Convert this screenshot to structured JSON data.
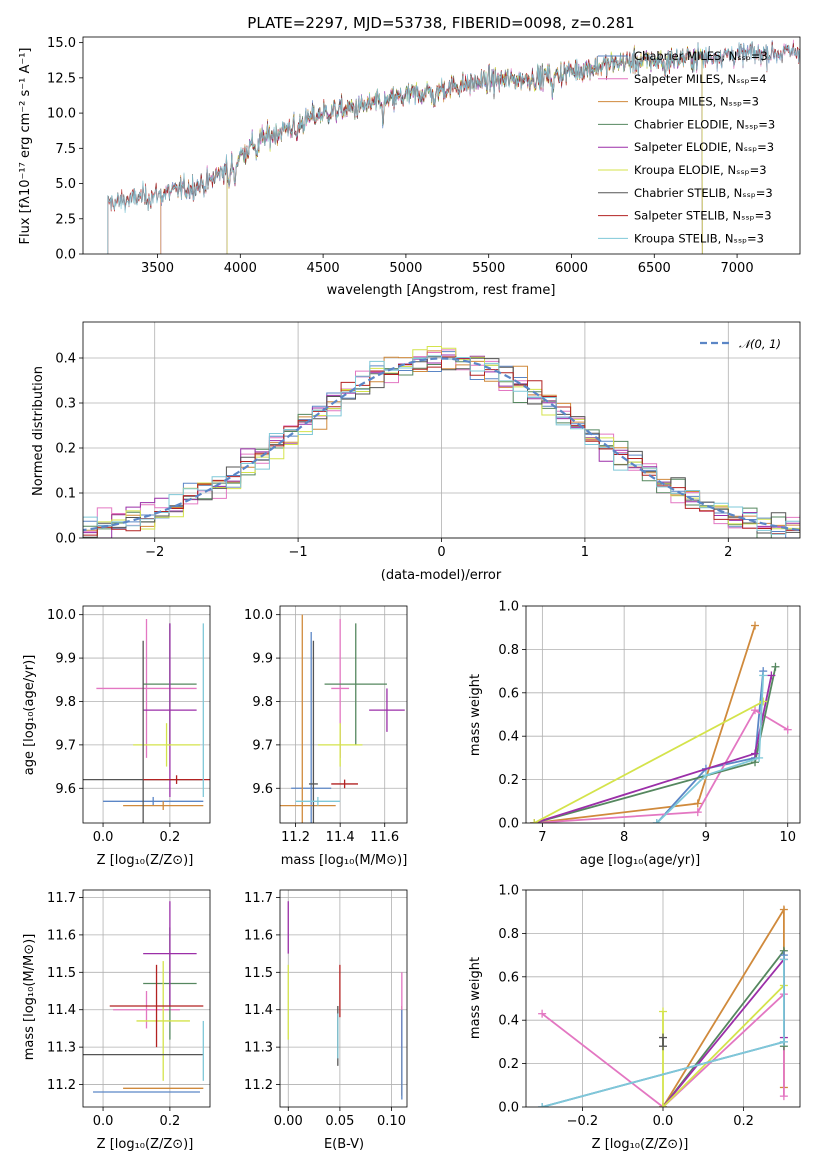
{
  "chart_data": [
    {
      "id": "spectrum",
      "type": "line",
      "title": "PLATE=2297, MJD=53738, FIBERID=0098, z=0.281",
      "xlabel": "wavelength [Angstrom, rest frame]",
      "ylabel": "Flux [fλ10⁻¹⁷ erg cm⁻² s⁻¹ A⁻¹]",
      "xlim": [
        3050,
        7380
      ],
      "ylim": [
        0,
        15.4
      ],
      "xticks": [
        "3500",
        "4000",
        "4500",
        "5000",
        "5500",
        "6000",
        "6500",
        "7000"
      ],
      "yticks": [
        "0.0",
        "2.5",
        "5.0",
        "7.5",
        "10.0",
        "12.5",
        "15.0"
      ],
      "legend_position": "right",
      "series": [
        {
          "name": "Chabrier MILES, Nₛₛₚ=3",
          "color": "#5b86c6",
          "start": 3520,
          "end": 7380
        },
        {
          "name": "Salpeter MILES, Nₛₛₚ=4",
          "color": "#e377c2",
          "start": 3520,
          "end": 7380
        },
        {
          "name": "Kroupa MILES, Nₛₛₚ=3",
          "color": "#d08a3c",
          "start": 3520,
          "end": 6790
        },
        {
          "name": "Chabrier ELODIE, Nₛₛₚ=3",
          "color": "#55875f",
          "start": 3920,
          "end": 6790
        },
        {
          "name": "Salpeter ELODIE, Nₛₛₚ=3",
          "color": "#9b2fa8",
          "start": 3920,
          "end": 6790
        },
        {
          "name": "Kroupa ELODIE, Nₛₛₚ=3",
          "color": "#d4e34b",
          "start": 3920,
          "end": 6790
        },
        {
          "name": "Chabrier STELIB, Nₛₛₚ=3",
          "color": "#555555",
          "start": 3200,
          "end": 7380
        },
        {
          "name": "Salpeter STELIB, Nₛₛₚ=3",
          "color": "#b22222",
          "start": 3200,
          "end": 7380
        },
        {
          "name": "Kroupa STELIB, Nₛₛₚ=3",
          "color": "#7fc8d8",
          "start": 3200,
          "end": 7380
        }
      ],
      "approx_continuum": [
        [
          3200,
          3.6
        ],
        [
          3500,
          4.2
        ],
        [
          3800,
          5.0
        ],
        [
          3950,
          6.5
        ],
        [
          4100,
          8.0
        ],
        [
          4300,
          9.0
        ],
        [
          4500,
          10.0
        ],
        [
          4800,
          10.6
        ],
        [
          5000,
          11.2
        ],
        [
          5200,
          11.7
        ],
        [
          5500,
          12.3
        ],
        [
          5800,
          12.5
        ],
        [
          6000,
          13.0
        ],
        [
          6300,
          13.6
        ],
        [
          6600,
          13.8
        ],
        [
          7000,
          14.2
        ],
        [
          7380,
          14.3
        ]
      ]
    },
    {
      "id": "residuals",
      "type": "line",
      "xlabel": "(data-model)/error",
      "ylabel": "Normed distribution",
      "xlim": [
        -2.5,
        2.5
      ],
      "ylim": [
        0,
        0.48
      ],
      "xticks": [
        "−2",
        "−1",
        "0",
        "1",
        "2"
      ],
      "yticks": [
        "0.0",
        "0.1",
        "0.2",
        "0.3",
        "0.4"
      ],
      "legend": "𝒩(0, 1)",
      "legend_position": "top-right",
      "bin_width": 0.1
    },
    {
      "id": "age_vs_Z",
      "type": "scatter",
      "xlabel": "Z [log₁₀(Z/Z⊙)]",
      "ylabel": "age  [log₁₀(age/yr)]",
      "xlim": [
        -0.06,
        0.32
      ],
      "ylim": [
        9.52,
        10.02
      ],
      "xticks": [
        "0.0",
        "0.2"
      ],
      "yticks": [
        "9.6",
        "9.7",
        "9.8",
        "9.9",
        "10.0"
      ],
      "points": [
        {
          "color": "#5b86c6",
          "x": 0.15,
          "xerr": 0.15,
          "y": 9.57,
          "yerr": 0.01
        },
        {
          "color": "#e377c2",
          "x": 0.13,
          "xerr": 0.15,
          "y": 9.83,
          "yerr": 0.16
        },
        {
          "color": "#d08a3c",
          "x": 0.18,
          "xerr": 0.12,
          "y": 9.56,
          "yerr": 0.01
        },
        {
          "color": "#55875f",
          "x": 0.2,
          "xerr": 0.08,
          "y": 9.84,
          "yerr": 0.14
        },
        {
          "color": "#9b2fa8",
          "x": 0.2,
          "xerr": 0.08,
          "y": 9.78,
          "yerr": 0.2
        },
        {
          "color": "#d4e34b",
          "x": 0.19,
          "xerr": 0.1,
          "y": 9.7,
          "yerr": 0.05
        },
        {
          "color": "#555555",
          "x": 0.12,
          "xerr": 0.18,
          "y": 9.62,
          "yerr": 0.32
        },
        {
          "color": "#b22222",
          "x": 0.22,
          "xerr": 0.1,
          "y": 9.62,
          "yerr": 0.01
        },
        {
          "color": "#7fc8d8",
          "x": 0.3,
          "xerr": 0.0,
          "y": 9.78,
          "yerr": 0.2
        }
      ]
    },
    {
      "id": "age_vs_mass",
      "type": "scatter",
      "xlabel": "mass [log₁₀(M/M⊙)]",
      "ylabel": "",
      "xlim": [
        11.13,
        11.7
      ],
      "ylim": [
        9.52,
        10.02
      ],
      "xticks": [
        "11.2",
        "11.4",
        "11.6"
      ],
      "yticks": [
        "9.6",
        "9.7",
        "9.8",
        "9.9",
        "10.0"
      ],
      "points": [
        {
          "color": "#5b86c6",
          "x": 11.27,
          "xerr": 0.09,
          "y": 9.6,
          "yerr": 0.36
        },
        {
          "color": "#e377c2",
          "x": 11.4,
          "xerr": 0.04,
          "y": 9.83,
          "yerr": 0.16
        },
        {
          "color": "#d08a3c",
          "x": 11.23,
          "xerr": 0.15,
          "y": 9.56,
          "yerr": 0.44
        },
        {
          "color": "#55875f",
          "x": 11.47,
          "xerr": 0.14,
          "y": 9.84,
          "yerr": 0.14
        },
        {
          "color": "#9b2fa8",
          "x": 11.61,
          "xerr": 0.08,
          "y": 9.78,
          "yerr": 0.05
        },
        {
          "color": "#d4e34b",
          "x": 11.4,
          "xerr": 0.1,
          "y": 9.7,
          "yerr": 0.05
        },
        {
          "color": "#555555",
          "x": 11.28,
          "xerr": 0.02,
          "y": 9.61,
          "yerr": 0.33
        },
        {
          "color": "#b22222",
          "x": 11.42,
          "xerr": 0.06,
          "y": 9.61,
          "yerr": 0.01
        },
        {
          "color": "#7fc8d8",
          "x": 11.3,
          "xerr": 0.1,
          "y": 9.57,
          "yerr": 0.01
        }
      ]
    },
    {
      "id": "massweight_vs_age",
      "type": "line",
      "xlabel": "age  [log₁₀(age/yr)]",
      "ylabel": "mass weight",
      "xlim": [
        6.8,
        10.15
      ],
      "ylim": [
        0,
        1
      ],
      "xticks": [
        "7",
        "8",
        "9",
        "10"
      ],
      "yticks": [
        "0.0",
        "0.2",
        "0.4",
        "0.6",
        "0.8",
        "1.0"
      ],
      "series": [
        {
          "color": "#d08a3c",
          "x": [
            6.9,
            8.9,
            9.6
          ],
          "y": [
            0.0,
            0.09,
            0.91
          ]
        },
        {
          "color": "#5b86c6",
          "x": [
            8.4,
            9.0,
            9.6,
            9.7
          ],
          "y": [
            0.0,
            0.25,
            0.3,
            0.7
          ]
        },
        {
          "color": "#e377c2",
          "x": [
            6.9,
            8.9,
            9.6,
            10.0
          ],
          "y": [
            0.0,
            0.05,
            0.52,
            0.43
          ]
        },
        {
          "color": "#55875f",
          "x": [
            6.9,
            9.6,
            9.85
          ],
          "y": [
            0.0,
            0.28,
            0.72
          ]
        },
        {
          "color": "#9b2fa8",
          "x": [
            6.9,
            9.6,
            9.8
          ],
          "y": [
            0.0,
            0.32,
            0.68
          ]
        },
        {
          "color": "#d4e34b",
          "x": [
            6.9,
            9.7
          ],
          "y": [
            0.0,
            0.56
          ]
        },
        {
          "color": "#7fc8d8",
          "x": [
            8.4,
            9.0,
            9.65,
            9.7
          ],
          "y": [
            0.0,
            0.22,
            0.3,
            0.68
          ]
        }
      ]
    },
    {
      "id": "mass_vs_Z",
      "type": "scatter",
      "xlabel": "Z [log₁₀(Z/Z⊙)]",
      "ylabel": "mass [log₁₀(M/M⊙)]",
      "xlim": [
        -0.06,
        0.32
      ],
      "ylim": [
        11.14,
        11.72
      ],
      "xticks": [
        "0.0",
        "0.2"
      ],
      "yticks": [
        "11.2",
        "11.3",
        "11.4",
        "11.5",
        "11.6",
        "11.7"
      ],
      "points": [
        {
          "color": "#5b86c6",
          "x": 0.13,
          "xerr": 0.16,
          "y": 11.18,
          "yerr": 0.0
        },
        {
          "color": "#e377c2",
          "x": 0.13,
          "xerr": 0.1,
          "y": 11.4,
          "yerr": 0.05
        },
        {
          "color": "#d08a3c",
          "x": 0.18,
          "xerr": 0.12,
          "y": 11.19,
          "yerr": 0.0
        },
        {
          "color": "#55875f",
          "x": 0.2,
          "xerr": 0.08,
          "y": 11.47,
          "yerr": 0.15
        },
        {
          "color": "#9b2fa8",
          "x": 0.2,
          "xerr": 0.08,
          "y": 11.55,
          "yerr": 0.14
        },
        {
          "color": "#d4e34b",
          "x": 0.18,
          "xerr": 0.08,
          "y": 11.37,
          "yerr": 0.16
        },
        {
          "color": "#555555",
          "x": 0.12,
          "xerr": 0.18,
          "y": 11.28,
          "yerr": 0.0
        },
        {
          "color": "#b22222",
          "x": 0.16,
          "xerr": 0.14,
          "y": 11.41,
          "yerr": 0.11
        },
        {
          "color": "#7fc8d8",
          "x": 0.3,
          "xerr": 0.0,
          "y": 11.29,
          "yerr": 0.08
        }
      ]
    },
    {
      "id": "mass_vs_EBV",
      "type": "scatter",
      "xlabel": "E(B-V)",
      "ylabel": "",
      "xlim": [
        -0.008,
        0.115
      ],
      "ylim": [
        11.14,
        11.72
      ],
      "xticks": [
        "0.00",
        "0.05",
        "0.10"
      ],
      "yticks": [
        "11.2",
        "11.3",
        "11.4",
        "11.5",
        "11.6",
        "11.7"
      ],
      "points": [
        {
          "color": "#9b2fa8",
          "x": 0.0,
          "xerr": 0,
          "y": 11.62,
          "yerr": 0.07
        },
        {
          "color": "#d4e34b",
          "x": 0.0,
          "xerr": 0,
          "y": 11.42,
          "yerr": 0.1
        },
        {
          "color": "#b22222",
          "x": 0.05,
          "xerr": 0,
          "y": 11.45,
          "yerr": 0.07
        },
        {
          "color": "#555555",
          "x": 0.048,
          "xerr": 0,
          "y": 11.33,
          "yerr": 0.08
        },
        {
          "color": "#7fc8d8",
          "x": 0.048,
          "xerr": 0,
          "y": 11.33,
          "yerr": 0.06
        },
        {
          "color": "#d08a3c",
          "x": 0.11,
          "xerr": 0,
          "y": 11.29,
          "yerr": 0.12
        },
        {
          "color": "#e377c2",
          "x": 0.11,
          "xerr": 0,
          "y": 11.4,
          "yerr": 0.1
        },
        {
          "color": "#5b86c6",
          "x": 0.11,
          "xerr": 0,
          "y": 11.28,
          "yerr": 0.12
        }
      ]
    },
    {
      "id": "massweight_vs_Z",
      "type": "line",
      "xlabel": "Z [log₁₀(Z/Z⊙)]",
      "ylabel": "mass weight",
      "xlim": [
        -0.34,
        0.34
      ],
      "ylim": [
        0,
        1
      ],
      "xticks": [
        "−0.2",
        "0.0",
        "0.2"
      ],
      "yticks": [
        "0.0",
        "0.2",
        "0.4",
        "0.6",
        "0.8",
        "1.0"
      ],
      "series": [
        {
          "color": "#d08a3c",
          "x": [
            0.0,
            0.3,
            0.3
          ],
          "y": [
            0.0,
            0.91,
            0.09
          ]
        },
        {
          "color": "#e377c2",
          "x": [
            -0.3,
            0.0,
            0.3,
            0.3
          ],
          "y": [
            0.43,
            0.0,
            0.52,
            0.05
          ]
        },
        {
          "color": "#55875f",
          "x": [
            0.0,
            0.3,
            0.3
          ],
          "y": [
            0.0,
            0.72,
            0.28
          ]
        },
        {
          "color": "#9b2fa8",
          "x": [
            0.0,
            0.3,
            0.3
          ],
          "y": [
            0.0,
            0.68,
            0.32
          ]
        },
        {
          "color": "#d4e34b",
          "x": [
            0.0,
            0.0,
            0.3
          ],
          "y": [
            0.44,
            0.0,
            0.56
          ]
        },
        {
          "color": "#5b86c6",
          "x": [
            -0.3,
            0.3,
            0.3
          ],
          "y": [
            0.0,
            0.3,
            0.7
          ]
        },
        {
          "color": "#7fc8d8",
          "x": [
            -0.3,
            0.3,
            0.3
          ],
          "y": [
            0.0,
            0.3,
            0.68
          ]
        },
        {
          "color": "#555555",
          "x": [
            0.0,
            0.0
          ],
          "y": [
            0.32,
            0.28
          ]
        }
      ]
    }
  ]
}
